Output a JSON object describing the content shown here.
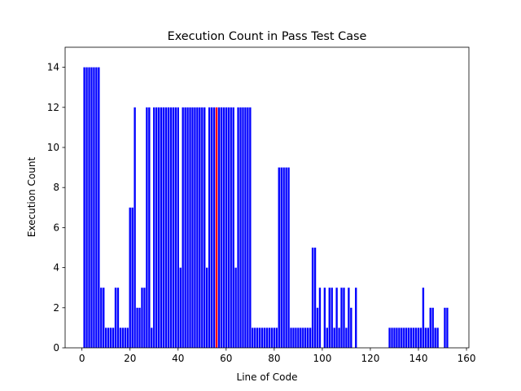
{
  "chart_data": {
    "type": "bar",
    "title": "Execution Count in Pass Test Case",
    "xlabel": "Line of Code",
    "ylabel": "Execution Count",
    "x": [
      1,
      2,
      3,
      4,
      5,
      6,
      7,
      8,
      9,
      10,
      11,
      12,
      13,
      14,
      15,
      16,
      17,
      18,
      19,
      20,
      21,
      22,
      23,
      24,
      25,
      26,
      27,
      28,
      29,
      30,
      31,
      32,
      33,
      34,
      35,
      36,
      37,
      38,
      39,
      40,
      41,
      42,
      43,
      44,
      45,
      46,
      47,
      48,
      49,
      50,
      51,
      52,
      53,
      54,
      55,
      56,
      57,
      58,
      59,
      60,
      61,
      62,
      63,
      64,
      65,
      66,
      67,
      68,
      69,
      70,
      71,
      72,
      73,
      74,
      75,
      76,
      77,
      78,
      79,
      80,
      81,
      82,
      83,
      84,
      85,
      86,
      87,
      88,
      89,
      90,
      91,
      92,
      93,
      94,
      95,
      96,
      97,
      98,
      99,
      100,
      101,
      102,
      103,
      104,
      105,
      106,
      107,
      108,
      109,
      110,
      111,
      112,
      113,
      114,
      115,
      116,
      117,
      118,
      119,
      120,
      121,
      122,
      123,
      124,
      125,
      126,
      127,
      128,
      129,
      130,
      131,
      132,
      133,
      134,
      135,
      136,
      137,
      138,
      139,
      140,
      141,
      142,
      143,
      144,
      145,
      146,
      147,
      148,
      149,
      150,
      151,
      152,
      153
    ],
    "values": [
      14,
      14,
      14,
      14,
      14,
      14,
      14,
      3,
      3,
      1,
      1,
      1,
      1,
      3,
      3,
      1,
      1,
      1,
      1,
      7,
      7,
      12,
      2,
      2,
      3,
      3,
      12,
      12,
      1,
      12,
      12,
      12,
      12,
      12,
      12,
      12,
      12,
      12,
      12,
      12,
      4,
      12,
      12,
      12,
      12,
      12,
      12,
      12,
      12,
      12,
      12,
      4,
      12,
      12,
      12,
      12,
      12,
      12,
      12,
      12,
      12,
      12,
      12,
      4,
      12,
      12,
      12,
      12,
      12,
      12,
      1,
      1,
      1,
      1,
      1,
      1,
      1,
      1,
      1,
      1,
      1,
      9,
      9,
      9,
      9,
      9,
      1,
      1,
      1,
      1,
      1,
      1,
      1,
      1,
      1,
      5,
      5,
      2,
      3,
      0,
      3,
      1,
      3,
      3,
      1,
      3,
      1,
      3,
      3,
      1,
      3,
      2,
      0,
      3,
      0,
      0,
      0,
      0,
      0,
      0,
      0,
      0,
      0,
      0,
      0,
      0,
      0,
      1,
      1,
      1,
      1,
      1,
      1,
      1,
      1,
      1,
      1,
      1,
      1,
      1,
      1,
      3,
      1,
      1,
      2,
      2,
      1,
      1,
      0,
      0,
      2,
      2,
      0
    ],
    "color": "#0000ff",
    "highlight_x": 56,
    "highlight_color": "#ff0000",
    "bar_width": 0.8,
    "xlim": [
      -7,
      161
    ],
    "xticks": [
      0,
      20,
      40,
      60,
      80,
      100,
      120,
      140,
      160
    ],
    "ylim": [
      0,
      15
    ],
    "yticks": [
      0,
      2,
      4,
      6,
      8,
      10,
      12,
      14
    ]
  }
}
